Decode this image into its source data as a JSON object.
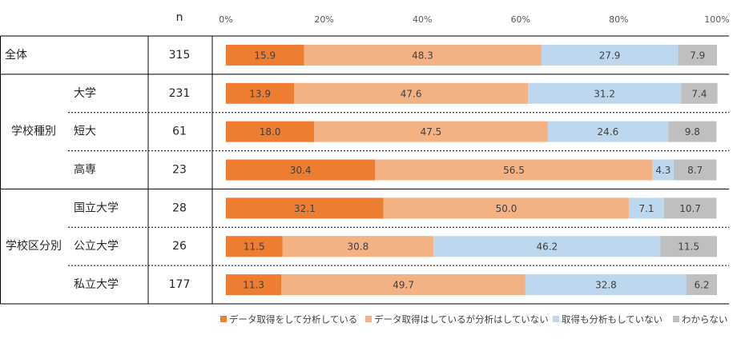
{
  "chart_data": {
    "type": "bar",
    "orientation": "horizontal",
    "stacked": true,
    "n_label": "n",
    "categories": [
      "全体",
      "大学",
      "短大",
      "高専",
      "国立大学",
      "公立大学",
      "私立大学"
    ],
    "category_groups": [
      null,
      "学校種別",
      "学校種別",
      "学校種別",
      "学校区分別",
      "学校区分別",
      "学校区分別"
    ],
    "n": [
      315,
      231,
      61,
      23,
      28,
      26,
      177
    ],
    "xlim": [
      0,
      100
    ],
    "xticks": [
      {
        "value": 0,
        "label": "0%"
      },
      {
        "value": 20,
        "label": "20%"
      },
      {
        "value": 40,
        "label": "40%"
      },
      {
        "value": 60,
        "label": "60%"
      },
      {
        "value": 80,
        "label": "80%"
      },
      {
        "value": 100,
        "label": "100%"
      }
    ],
    "series": [
      {
        "name": "データ取得をして分析している",
        "color": "#ed7d31",
        "values": [
          15.9,
          13.9,
          18.0,
          30.4,
          32.1,
          11.5,
          11.3
        ],
        "value_labels": [
          "15.9",
          "13.9",
          "18.0",
          "30.4",
          "32.1",
          "11.5",
          "11.3"
        ]
      },
      {
        "name": "データ取得はしているが分析はしていない",
        "color": "#f4b183",
        "values": [
          48.3,
          47.6,
          47.5,
          56.5,
          50.0,
          30.8,
          49.7
        ],
        "value_labels": [
          "48.3",
          "47.6",
          "47.5",
          "56.5",
          "50.0",
          "30.8",
          "49.7"
        ]
      },
      {
        "name": "取得も分析もしていない",
        "color": "#bdd7ee",
        "values": [
          27.9,
          31.2,
          24.6,
          4.3,
          7.1,
          46.2,
          32.8
        ],
        "value_labels": [
          "27.9",
          "31.2",
          "24.6",
          "4.3",
          "7.1",
          "46.2",
          "32.8"
        ]
      },
      {
        "name": "わからない",
        "color": "#bfbfbf",
        "values": [
          7.9,
          7.4,
          9.8,
          8.7,
          10.7,
          11.5,
          6.2
        ],
        "value_labels": [
          "7.9",
          "7.4",
          "9.8",
          "8.7",
          "10.7",
          "11.5",
          "6.2"
        ]
      }
    ],
    "legend_position": "bottom"
  }
}
